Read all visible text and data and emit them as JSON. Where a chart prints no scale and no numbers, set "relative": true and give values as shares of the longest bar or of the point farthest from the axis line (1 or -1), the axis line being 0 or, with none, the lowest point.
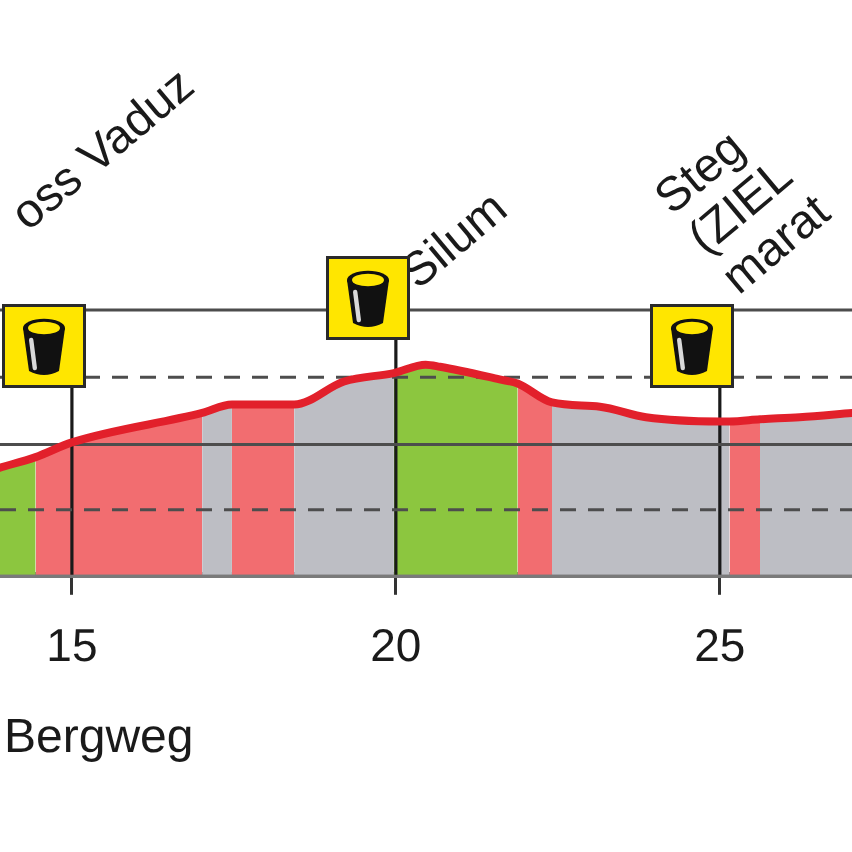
{
  "chart_data": {
    "type": "area",
    "relative": true,
    "xlim": [
      13.89,
      27.04
    ],
    "xticks": [
      15,
      20,
      25
    ],
    "series": [
      {
        "color": "#8cc63f",
        "x": [
          13.89,
          14.44
        ],
        "values": [
          0.51,
          0.56
        ]
      },
      {
        "color": "#f26d70",
        "x": [
          14.44,
          15,
          17.01
        ],
        "values": [
          0.56,
          0.63,
          0.77
        ]
      },
      {
        "color": "#bdbec4",
        "x": [
          17.01,
          17.47
        ],
        "values": [
          0.77,
          0.81
        ]
      },
      {
        "color": "#f26d70",
        "x": [
          17.47,
          18.43
        ],
        "values": [
          0.81,
          0.81
        ]
      },
      {
        "color": "#bdbec4",
        "x": [
          18.43,
          19.2,
          19.97
        ],
        "values": [
          0.81,
          0.92,
          0.96
        ]
      },
      {
        "color": "#8cc63f",
        "x": [
          19.97,
          20.46,
          20.68,
          21.6,
          21.88
        ],
        "values": [
          0.96,
          1,
          0.99,
          0.93,
          0.91
        ]
      },
      {
        "color": "#f26d70",
        "x": [
          21.88,
          22.41
        ],
        "values": [
          0.91,
          0.82
        ]
      },
      {
        "color": "#bdbec4",
        "x": [
          22.41,
          23.15,
          23.86,
          25,
          25.15
        ],
        "values": [
          0.82,
          0.8,
          0.75,
          0.73,
          0.73
        ]
      },
      {
        "color": "#f26d70",
        "x": [
          25.15,
          25.62
        ],
        "values": [
          0.73,
          0.74
        ]
      },
      {
        "color": "#bdbec4",
        "x": [
          25.62,
          26.23,
          27.04
        ],
        "values": [
          0.74,
          0.75,
          0.77
        ]
      },
      {
        "type": "line",
        "color": "#e2202b",
        "x": [
          13.89,
          14.44,
          15,
          17.01,
          17.47,
          18.43,
          19.2,
          19.97,
          20.46,
          20.68,
          21.6,
          21.88,
          22.41,
          23.15,
          23.86,
          25,
          25.15,
          25.62,
          26.23,
          27.04
        ],
        "values": [
          0.51,
          0.56,
          0.63,
          0.77,
          0.81,
          0.81,
          0.92,
          0.96,
          1,
          0.99,
          0.93,
          0.91,
          0.82,
          0.8,
          0.75,
          0.73,
          0.73,
          0.74,
          0.75,
          0.77
        ]
      }
    ],
    "ref_lines": [
      {
        "axis": "x",
        "value": 15,
        "color": "#1a1a1a"
      },
      {
        "axis": "x",
        "value": 20,
        "color": "#1a1a1a"
      },
      {
        "axis": "x",
        "value": 25,
        "color": "#1a1a1a"
      },
      {
        "axis": "y",
        "value": 0.31,
        "color": "#4d4d4d",
        "line_style": "dashed"
      },
      {
        "axis": "y",
        "value": 0.62,
        "color": "#4d4d4d"
      },
      {
        "axis": "y",
        "value": 0.94,
        "color": "#4d4d4d",
        "line_style": "dashed"
      },
      {
        "axis": "y",
        "value": 1.26,
        "color": "#4d4d4d"
      }
    ],
    "annotations": [
      "oss Vaduz",
      "Silum",
      "Steg (ZIEL marat",
      "Bergweg"
    ],
    "legend": false,
    "marker": "none"
  }
}
